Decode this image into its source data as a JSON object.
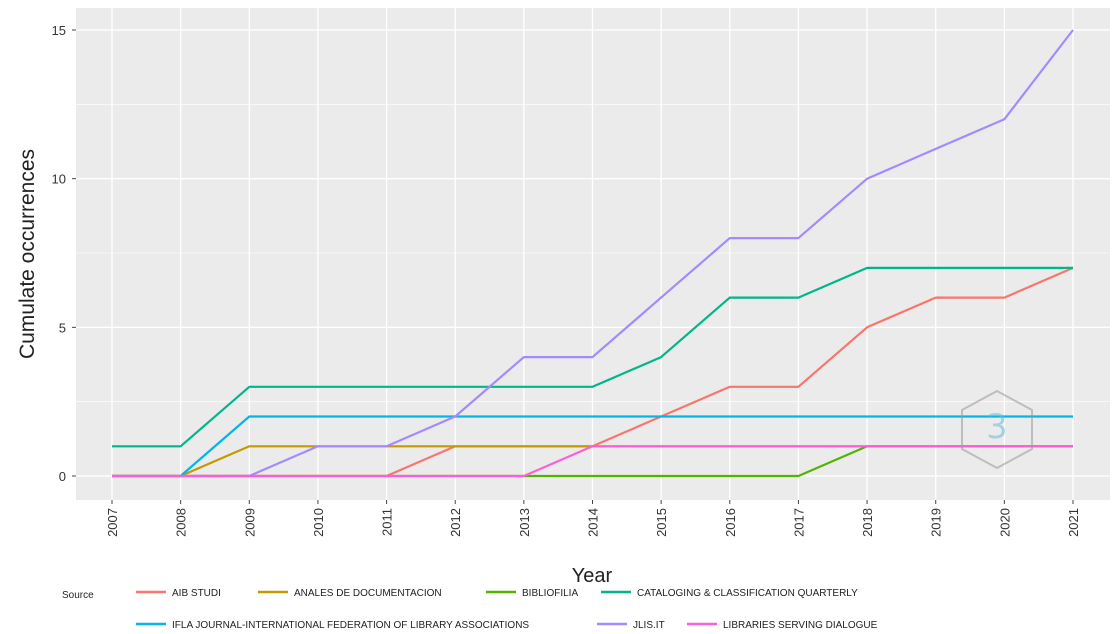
{
  "chart_data": {
    "type": "line",
    "xlabel": "Year",
    "ylabel": "Cumulate occurrences",
    "x": [
      2007,
      2008,
      2009,
      2010,
      2011,
      2012,
      2013,
      2014,
      2015,
      2016,
      2017,
      2018,
      2019,
      2020,
      2021
    ],
    "x_ticks": [
      "2007",
      "2008",
      "2009",
      "2010",
      "2011",
      "2012",
      "2013",
      "2014",
      "2015",
      "2016",
      "2017",
      "2018",
      "2019",
      "2020",
      "2021"
    ],
    "y_ticks": [
      "0",
      "5",
      "10",
      "15"
    ],
    "ylim": [
      -0.8,
      15.8
    ],
    "grid": true,
    "legend_title": "Source",
    "legend_position": "bottom",
    "series": [
      {
        "name": "AIB STUDI",
        "color": "#f8766d",
        "values": [
          0,
          0,
          0,
          0,
          0,
          1,
          1,
          1,
          2,
          3,
          3,
          5,
          6,
          6,
          7
        ]
      },
      {
        "name": "ANALES DE DOCUMENTACION",
        "color": "#c49a00",
        "values": [
          0,
          0,
          1,
          1,
          1,
          1,
          1,
          1,
          1,
          1,
          1,
          1,
          1,
          1,
          1
        ]
      },
      {
        "name": "BIBLIOFILIA",
        "color": "#53b400",
        "values": [
          0,
          0,
          0,
          0,
          0,
          0,
          0,
          0,
          0,
          0,
          0,
          1,
          1,
          1,
          1
        ]
      },
      {
        "name": "CATALOGING & CLASSIFICATION QUARTERLY",
        "color": "#00b68a",
        "values": [
          1,
          1,
          3,
          3,
          3,
          3,
          3,
          3,
          4,
          6,
          6,
          7,
          7,
          7,
          7
        ]
      },
      {
        "name": "IFLA JOURNAL-INTERNATIONAL FEDERATION OF LIBRARY ASSOCIATIONS",
        "color": "#00b6eb",
        "values": [
          0,
          0,
          2,
          2,
          2,
          2,
          2,
          2,
          2,
          2,
          2,
          2,
          2,
          2,
          2
        ]
      },
      {
        "name": "JLIS.IT",
        "color": "#a58aff",
        "values": [
          0,
          0,
          0,
          1,
          1,
          2,
          4,
          4,
          6,
          8,
          8,
          10,
          11,
          12,
          15
        ]
      },
      {
        "name": "LIBRARIES SERVING DIALOGUE",
        "color": "#fb61d7",
        "values": [
          0,
          0,
          0,
          0,
          0,
          0,
          0,
          1,
          1,
          1,
          1,
          1,
          1,
          1,
          1
        ]
      }
    ]
  }
}
